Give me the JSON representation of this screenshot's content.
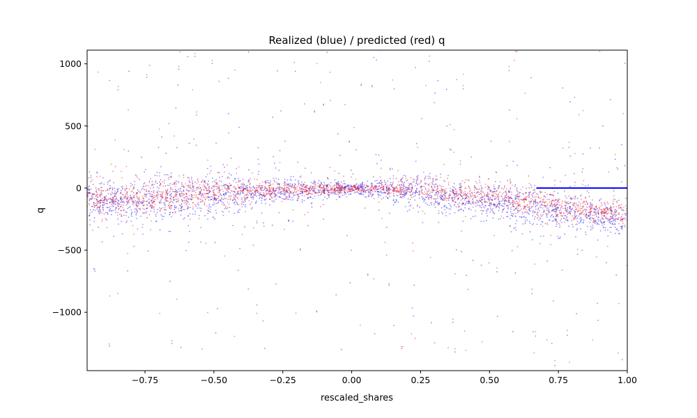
{
  "chart_data": {
    "type": "scatter",
    "title": "Realized (blue) / predicted (red) q",
    "xlabel": "rescaled_shares",
    "ylabel": "q",
    "xlim": [
      -0.96,
      1.0
    ],
    "ylim": [
      -1470,
      1110
    ],
    "xticks": [
      -0.75,
      -0.5,
      -0.25,
      0.0,
      0.25,
      0.5,
      0.75,
      1.0
    ],
    "xtick_labels": [
      "−0.75",
      "−0.50",
      "−0.25",
      "0.00",
      "0.25",
      "0.50",
      "0.75",
      "1.00"
    ],
    "yticks": [
      1000,
      500,
      0,
      -500,
      -1000
    ],
    "ytick_labels": [
      "1000",
      "500",
      "0",
      "−500",
      "−1000"
    ],
    "grid": false,
    "series": [
      {
        "color": "#0000ff",
        "trend": [
          [
            -0.96,
            -110
          ],
          [
            -0.75,
            -95
          ],
          [
            -0.5,
            -60
          ],
          [
            -0.25,
            -25
          ],
          [
            0.0,
            -5
          ],
          [
            0.25,
            -30
          ],
          [
            0.5,
            -100
          ],
          [
            0.75,
            -190
          ],
          [
            1.0,
            -260
          ]
        ],
        "spread": [
          [
            -0.96,
            90
          ],
          [
            -0.75,
            95
          ],
          [
            -0.5,
            95
          ],
          [
            -0.25,
            60
          ],
          [
            0.0,
            25
          ],
          [
            0.25,
            70
          ],
          [
            0.5,
            90
          ],
          [
            0.75,
            80
          ],
          [
            1.0,
            70
          ]
        ],
        "zero_line_range": [
          0.67,
          1.0
        ]
      },
      {
        "color": "#ff0000",
        "trend": [
          [
            -0.96,
            -95
          ],
          [
            -0.75,
            -75
          ],
          [
            -0.5,
            -35
          ],
          [
            -0.25,
            -15
          ],
          [
            0.0,
            0
          ],
          [
            0.25,
            -10
          ],
          [
            0.5,
            -70
          ],
          [
            0.75,
            -150
          ],
          [
            1.0,
            -220
          ]
        ],
        "spread": [
          [
            -0.96,
            70
          ],
          [
            -0.75,
            75
          ],
          [
            -0.5,
            70
          ],
          [
            -0.25,
            40
          ],
          [
            0.0,
            15
          ],
          [
            0.25,
            50
          ],
          [
            0.5,
            60
          ],
          [
            0.75,
            55
          ],
          [
            1.0,
            45
          ]
        ]
      }
    ]
  }
}
